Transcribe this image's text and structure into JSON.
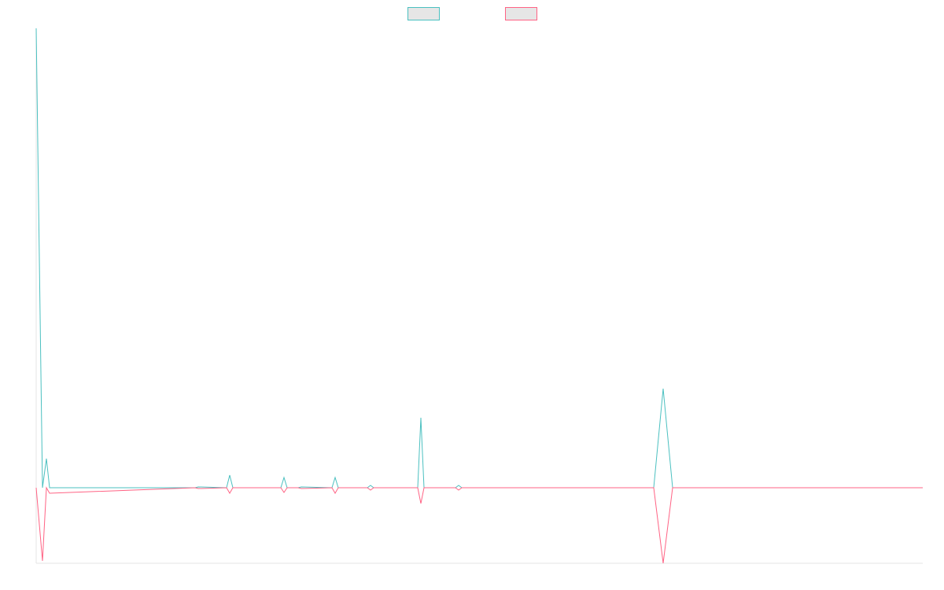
{
  "chart_data": {
    "type": "line",
    "title": "",
    "xlabel": "",
    "ylabel": "",
    "grid": false,
    "legend_position": "top-center",
    "ylim": [
      -96,
      584
    ],
    "x": [
      0,
      8,
      13,
      17,
      202,
      206,
      242,
      246,
      250,
      311,
      315,
      319,
      333,
      337,
      376,
      380,
      384,
      421,
      425,
      429,
      485,
      489,
      493,
      533,
      537,
      541,
      785,
      797,
      809,
      1127
    ],
    "series": [
      {
        "name": "",
        "color": "#4bc0c0",
        "values": [
          584,
          0,
          37,
          0,
          0,
          1,
          0,
          16,
          0,
          0,
          13,
          0,
          0,
          1,
          0,
          13,
          0,
          0,
          3,
          0,
          0,
          89,
          0,
          0,
          3,
          0,
          0,
          126,
          0,
          0
        ]
      },
      {
        "name": "",
        "color": "#ff6384",
        "values": [
          0,
          -93,
          0,
          -7,
          0,
          -1,
          0,
          -7,
          0,
          0,
          -6,
          0,
          0,
          -1,
          0,
          -7,
          0,
          0,
          -3,
          0,
          0,
          -20,
          0,
          0,
          -3,
          0,
          0,
          -96,
          0,
          0
        ]
      }
    ]
  }
}
